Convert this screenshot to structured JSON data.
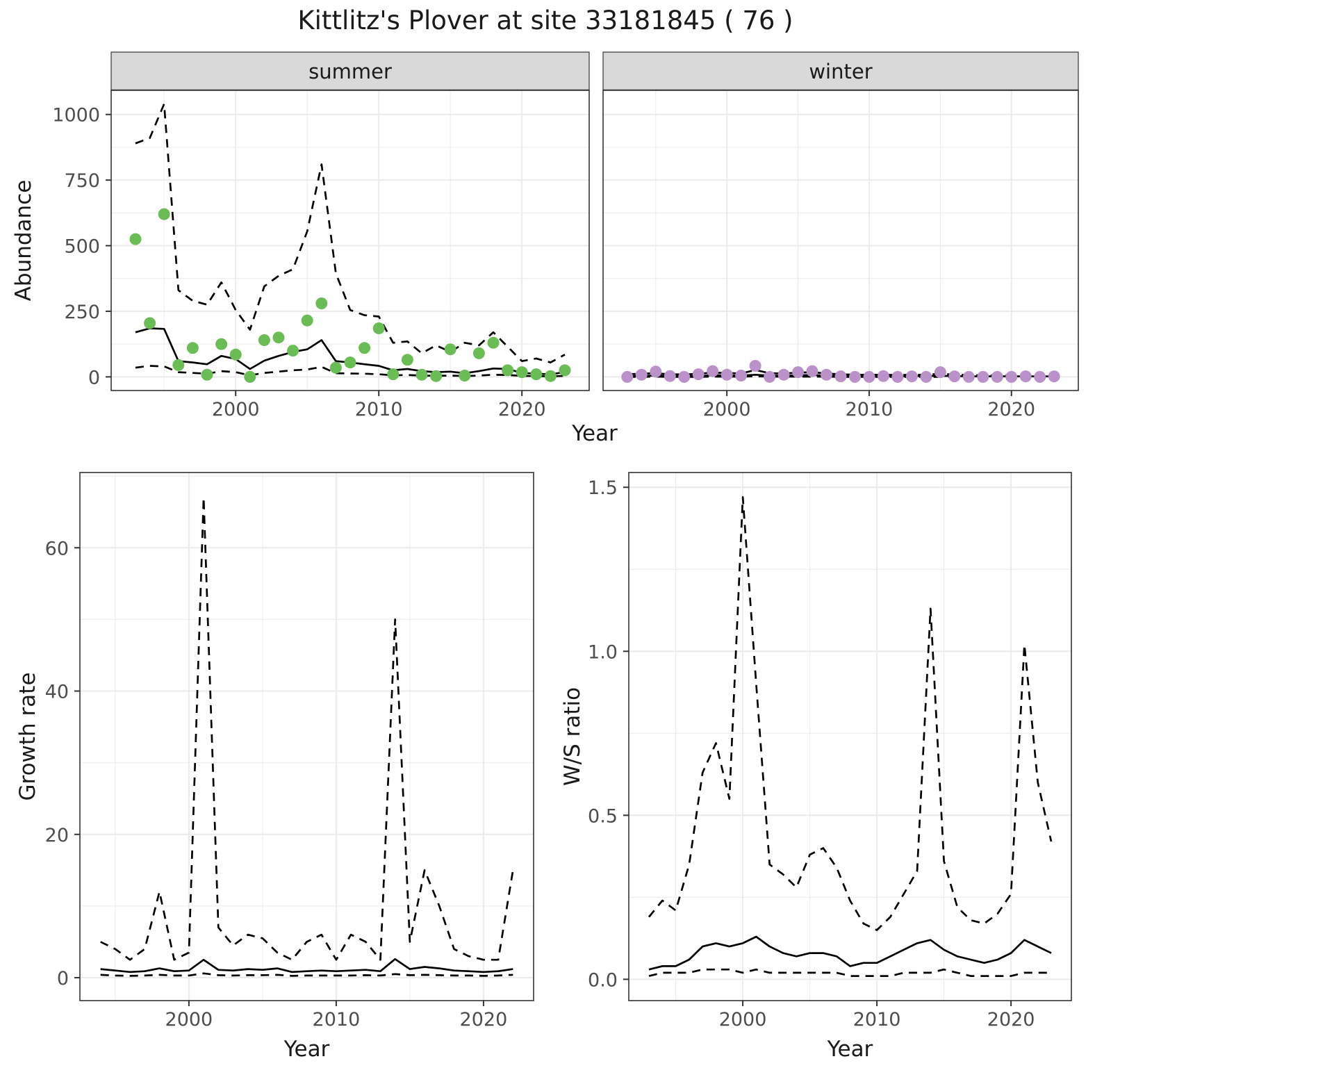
{
  "title": "Kittlitz's Plover at site 33181845 ( 76 )",
  "colors": {
    "summer_point": "#6abc55",
    "winter_point": "#bb91c9",
    "line": "#000000",
    "grid": "#ebebeb",
    "strip_bg": "#d9d9d9",
    "strip_border": "#333333",
    "panel_border": "#333333",
    "tick_text": "#4d4d4d",
    "label_text": "#1a1a1a"
  },
  "chart_data": [
    {
      "id": "abundance",
      "type": "scatter",
      "xlabel": "Year",
      "ylabel": "Abundance",
      "legend": "none",
      "grid": "on",
      "xlim": [
        1991.3,
        2024.7
      ],
      "ylim": [
        -52,
        1092
      ],
      "xticks": [
        2000,
        2010,
        2020
      ],
      "xtick_labels": [
        "2000",
        "2010",
        "2020"
      ],
      "yticks": [
        0,
        250,
        500,
        750,
        1000
      ],
      "ytick_labels": [
        "0",
        "250",
        "500",
        "750",
        "1000"
      ],
      "years": [
        1993,
        1994,
        1995,
        1996,
        1997,
        1998,
        1999,
        2000,
        2001,
        2002,
        2003,
        2004,
        2005,
        2006,
        2007,
        2008,
        2009,
        2010,
        2011,
        2012,
        2013,
        2014,
        2015,
        2016,
        2017,
        2018,
        2019,
        2020,
        2021,
        2022,
        2023
      ],
      "facets": [
        {
          "label": "summer",
          "point_color": "#6abc55",
          "observed": [
            525,
            205,
            620,
            45,
            110,
            8,
            125,
            85,
            0,
            140,
            150,
            100,
            215,
            280,
            35,
            55,
            110,
            185,
            10,
            65,
            8,
            3,
            105,
            5,
            90,
            130,
            25,
            18,
            10,
            3,
            25
          ],
          "fit": [
            170,
            185,
            183,
            60,
            55,
            48,
            80,
            68,
            30,
            62,
            80,
            95,
            105,
            140,
            60,
            55,
            48,
            42,
            25,
            30,
            22,
            18,
            20,
            14,
            22,
            32,
            30,
            15,
            12,
            10,
            18
          ],
          "upper_ci": [
            890,
            910,
            1040,
            330,
            290,
            275,
            360,
            255,
            180,
            345,
            385,
            410,
            555,
            810,
            395,
            255,
            235,
            230,
            130,
            135,
            90,
            120,
            95,
            130,
            120,
            170,
            115,
            60,
            70,
            55,
            85
          ],
          "lower_ci": [
            35,
            42,
            40,
            18,
            15,
            12,
            22,
            18,
            6,
            15,
            20,
            25,
            28,
            38,
            14,
            13,
            12,
            10,
            6,
            7,
            5,
            4,
            5,
            3,
            5,
            8,
            7,
            4,
            3,
            2,
            4
          ]
        },
        {
          "label": "winter",
          "point_color": "#bb91c9",
          "observed": [
            0,
            8,
            20,
            3,
            0,
            10,
            22,
            8,
            5,
            42,
            0,
            8,
            18,
            22,
            8,
            2,
            0,
            0,
            3,
            0,
            2,
            0,
            18,
            2,
            0,
            0,
            0,
            0,
            2,
            0,
            2
          ],
          "fit": [
            3,
            4,
            5,
            4,
            3,
            4,
            6,
            6,
            5,
            8,
            5,
            5,
            6,
            7,
            5,
            4,
            3,
            3,
            3,
            2,
            3,
            3,
            4,
            3,
            2,
            2,
            2,
            2,
            2,
            2,
            2
          ],
          "upper_ci": [
            10,
            12,
            14,
            10,
            9,
            12,
            16,
            15,
            13,
            26,
            14,
            13,
            16,
            18,
            13,
            10,
            8,
            8,
            8,
            7,
            8,
            8,
            12,
            8,
            7,
            6,
            6,
            6,
            6,
            6,
            6
          ],
          "lower_ci": [
            0,
            0,
            1,
            0,
            0,
            0,
            1,
            1,
            1,
            2,
            1,
            1,
            1,
            1,
            1,
            0,
            0,
            0,
            0,
            0,
            0,
            0,
            0,
            0,
            0,
            0,
            0,
            0,
            0,
            0,
            0
          ]
        }
      ]
    },
    {
      "id": "growth_rate",
      "type": "line",
      "xlabel": "Year",
      "ylabel": "Growth rate",
      "legend": "none",
      "grid": "on",
      "xlim": [
        1992.6,
        2023.4
      ],
      "ylim": [
        -3.2,
        70.5
      ],
      "xticks": [
        2000,
        2010,
        2020
      ],
      "xtick_labels": [
        "2000",
        "2010",
        "2020"
      ],
      "yticks": [
        0,
        20,
        40,
        60
      ],
      "ytick_labels": [
        "0",
        "20",
        "40",
        "60"
      ],
      "years": [
        1994,
        1995,
        1996,
        1997,
        1998,
        1999,
        2000,
        2001,
        2002,
        2003,
        2004,
        2005,
        2006,
        2007,
        2008,
        2009,
        2010,
        2011,
        2012,
        2013,
        2014,
        2015,
        2016,
        2017,
        2018,
        2019,
        2020,
        2021,
        2022
      ],
      "fit": [
        1.2,
        1.0,
        0.8,
        0.9,
        1.3,
        0.9,
        1.0,
        2.5,
        1.1,
        1.0,
        1.2,
        1.1,
        1.3,
        0.8,
        0.9,
        1.0,
        0.9,
        1.0,
        1.1,
        0.9,
        2.6,
        1.2,
        1.5,
        1.3,
        1.0,
        0.9,
        0.8,
        0.9,
        1.2
      ],
      "upper_ci": [
        5,
        4,
        2.5,
        4,
        12,
        2.5,
        3.5,
        67,
        7,
        4.5,
        6,
        5.5,
        3.5,
        2.5,
        5,
        6,
        2.5,
        6,
        5,
        2.5,
        50,
        5,
        15,
        10,
        4,
        3,
        2.5,
        2.5,
        15
      ],
      "lower_ci": [
        0.4,
        0.3,
        0.25,
        0.3,
        0.4,
        0.3,
        0.3,
        0.6,
        0.35,
        0.3,
        0.35,
        0.35,
        0.4,
        0.25,
        0.3,
        0.3,
        0.3,
        0.3,
        0.35,
        0.3,
        0.5,
        0.35,
        0.4,
        0.35,
        0.3,
        0.3,
        0.25,
        0.3,
        0.4
      ]
    },
    {
      "id": "ws_ratio",
      "type": "line",
      "xlabel": "Year",
      "ylabel": "W/S ratio",
      "legend": "none",
      "grid": "on",
      "xlim": [
        1991.5,
        2024.5
      ],
      "ylim": [
        -0.065,
        1.545
      ],
      "xticks": [
        2000,
        2010,
        2020
      ],
      "xtick_labels": [
        "2000",
        "2010",
        "2020"
      ],
      "yticks": [
        0,
        0.5,
        1.0,
        1.5
      ],
      "ytick_labels": [
        "0.0",
        "0.5",
        "1.0",
        "1.5"
      ],
      "years": [
        1993,
        1994,
        1995,
        1996,
        1997,
        1998,
        1999,
        2000,
        2001,
        2002,
        2003,
        2004,
        2005,
        2006,
        2007,
        2008,
        2009,
        2010,
        2011,
        2012,
        2013,
        2014,
        2015,
        2016,
        2017,
        2018,
        2019,
        2020,
        2021,
        2022,
        2023
      ],
      "fit": [
        0.03,
        0.04,
        0.04,
        0.06,
        0.1,
        0.11,
        0.1,
        0.11,
        0.13,
        0.1,
        0.08,
        0.07,
        0.08,
        0.08,
        0.07,
        0.04,
        0.05,
        0.05,
        0.07,
        0.09,
        0.11,
        0.12,
        0.09,
        0.07,
        0.06,
        0.05,
        0.06,
        0.08,
        0.12,
        0.1,
        0.08
      ],
      "upper_ci": [
        0.19,
        0.24,
        0.21,
        0.35,
        0.63,
        0.72,
        0.55,
        1.47,
        0.9,
        0.35,
        0.32,
        0.28,
        0.38,
        0.4,
        0.34,
        0.24,
        0.17,
        0.15,
        0.19,
        0.26,
        0.33,
        1.13,
        0.36,
        0.22,
        0.18,
        0.17,
        0.2,
        0.26,
        1.02,
        0.6,
        0.42
      ],
      "lower_ci": [
        0.01,
        0.02,
        0.02,
        0.02,
        0.03,
        0.03,
        0.03,
        0.02,
        0.03,
        0.02,
        0.02,
        0.02,
        0.02,
        0.02,
        0.02,
        0.01,
        0.01,
        0.01,
        0.01,
        0.02,
        0.02,
        0.02,
        0.03,
        0.02,
        0.01,
        0.01,
        0.01,
        0.01,
        0.02,
        0.02,
        0.02
      ]
    }
  ]
}
